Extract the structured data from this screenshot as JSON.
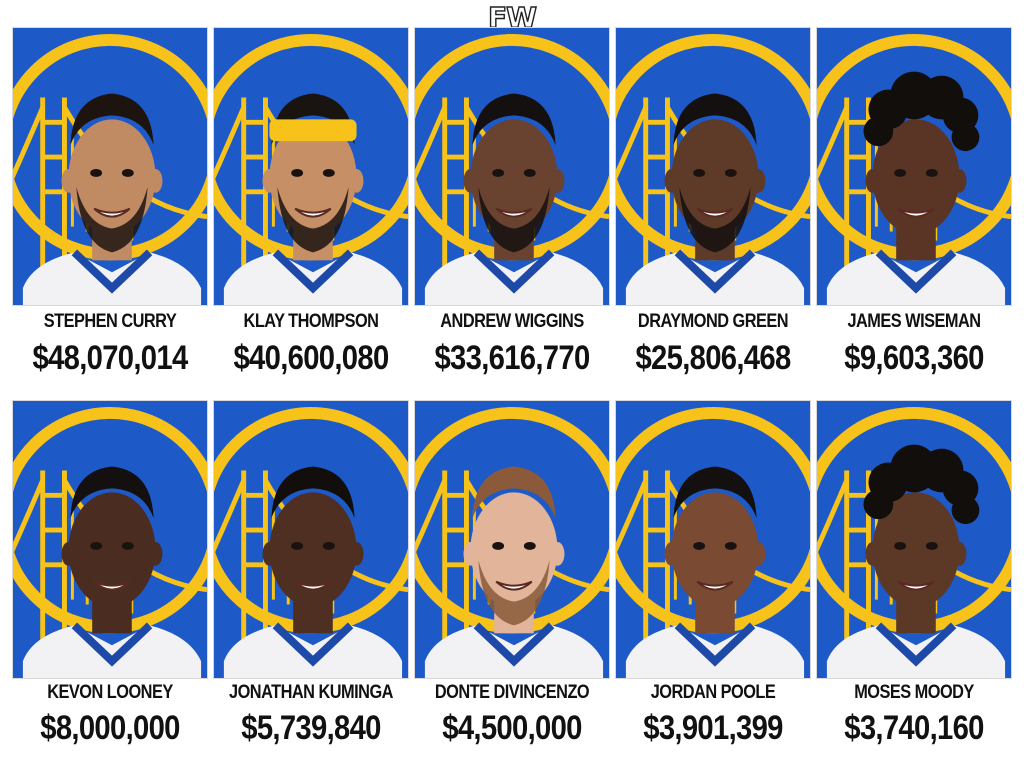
{
  "site_logo": "FW",
  "players": [
    {
      "name": "STEPHEN CURRY",
      "salary": "$48,070,014",
      "skin": "#c08a63",
      "hair": "#1d1410",
      "beard": true,
      "headband": false
    },
    {
      "name": "KLAY THOMPSON",
      "salary": "$40,600,080",
      "skin": "#c68f66",
      "hair": "#1a1410",
      "beard": true,
      "headband": true
    },
    {
      "name": "ANDREW WIGGINS",
      "salary": "$33,616,770",
      "skin": "#6a4230",
      "hair": "#141010",
      "beard": true,
      "headband": false
    },
    {
      "name": "DRAYMOND GREEN",
      "salary": "$25,806,468",
      "skin": "#5e3a28",
      "hair": "#141010",
      "beard": true,
      "headband": false
    },
    {
      "name": "JAMES WISEMAN",
      "salary": "$9,603,360",
      "skin": "#5a3526",
      "hair": "#120e0c",
      "beard": false,
      "headband": false,
      "curly": true
    },
    {
      "name": "KEVON LOONEY",
      "salary": "$8,000,000",
      "skin": "#4a2c20",
      "hair": "#141010",
      "beard": false,
      "headband": false
    },
    {
      "name": "JONATHAN KUMINGA",
      "salary": "$5,739,840",
      "skin": "#4f2f22",
      "hair": "#120e0c",
      "beard": false,
      "headband": false
    },
    {
      "name": "DONTE DIVINCENZO",
      "salary": "$4,500,000",
      "skin": "#e2b49a",
      "hair": "#8a5a3a",
      "beard": true,
      "headband": false
    },
    {
      "name": "JORDAN POOLE",
      "salary": "$3,901,399",
      "skin": "#7a4a32",
      "hair": "#141010",
      "beard": false,
      "headband": false
    },
    {
      "name": "MOSES MOODY",
      "salary": "$3,740,160",
      "skin": "#5c3826",
      "hair": "#120e0c",
      "beard": false,
      "headband": false,
      "curly": true
    }
  ],
  "colors": {
    "team_blue": "#1d5ac8",
    "team_gold": "#f7c21a",
    "jersey_white": "#f2f2f4",
    "jersey_trim": "#1d4aa8"
  }
}
